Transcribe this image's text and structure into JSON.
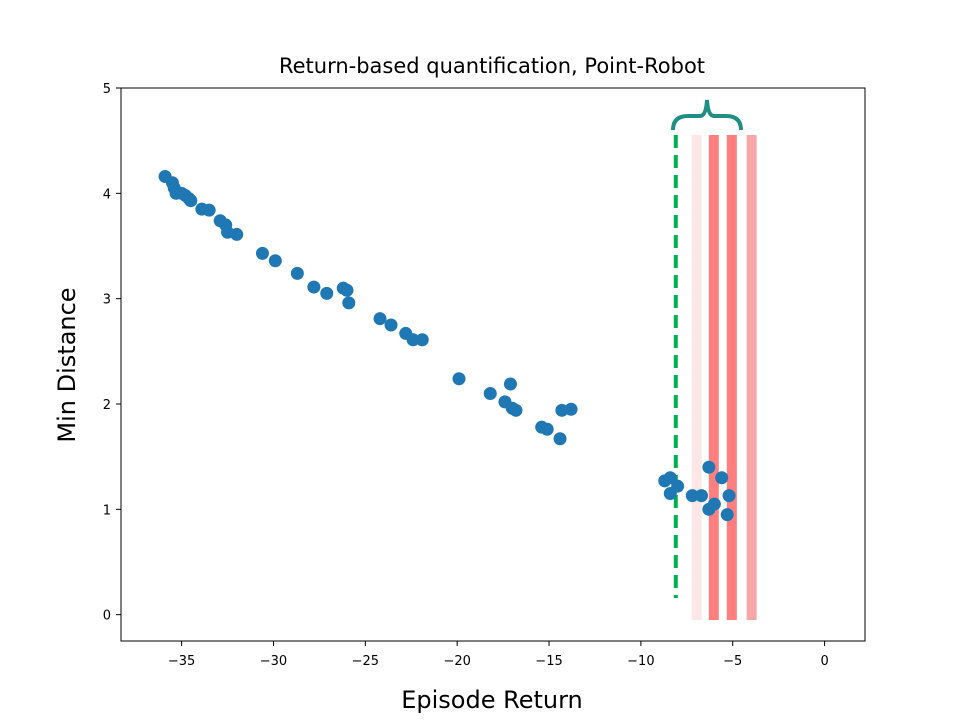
{
  "chart_data": {
    "type": "scatter",
    "title": "Return-based quantification, Point-Robot",
    "x_label": "Episode Return",
    "y_label": "Min Distance",
    "color": "#1f77b4",
    "xlim": [
      -38.3,
      2.2
    ],
    "ylim": [
      -0.25,
      5
    ],
    "xticks": [
      {
        "value": -35,
        "label": "−35"
      },
      {
        "value": -30,
        "label": "−30"
      },
      {
        "value": -25,
        "label": "−25"
      },
      {
        "value": -20,
        "label": "−20"
      },
      {
        "value": -15,
        "label": "−15"
      },
      {
        "value": -10,
        "label": "−10"
      },
      {
        "value": -5,
        "label": "−5"
      },
      0
    ],
    "yticks": [
      0,
      1,
      2,
      3,
      4,
      5
    ],
    "x": [
      -35.9,
      -35.5,
      -35.4,
      -35.3,
      -35.0,
      -34.8,
      -34.6,
      -34.5,
      -33.9,
      -33.5,
      -32.9,
      -32.6,
      -32.5,
      -32.0,
      -30.6,
      -29.9,
      -28.7,
      -27.8,
      -27.1,
      -26.2,
      -26.0,
      -25.9,
      -24.2,
      -23.6,
      -22.8,
      -22.4,
      -21.9,
      -19.9,
      -18.2,
      -17.4,
      -17.1,
      -17.0,
      -16.8,
      -15.4,
      -15.1,
      -14.4,
      -14.3,
      -13.8,
      -8.7,
      -8.4,
      -8.4,
      -8.0,
      -7.2,
      -6.7,
      -6.3,
      -6.3,
      -6.0,
      -5.6,
      -5.3,
      -5.2
    ],
    "values": [
      4.16,
      4.1,
      4.05,
      4.0,
      4.0,
      3.98,
      3.95,
      3.93,
      3.85,
      3.84,
      3.74,
      3.7,
      3.63,
      3.61,
      3.43,
      3.36,
      3.24,
      3.11,
      3.05,
      3.1,
      3.08,
      2.96,
      2.81,
      2.75,
      2.67,
      2.61,
      2.61,
      2.24,
      2.1,
      2.02,
      2.19,
      1.96,
      1.94,
      1.78,
      1.76,
      1.67,
      1.94,
      1.95,
      1.27,
      1.3,
      1.15,
      1.22,
      1.13,
      1.13,
      1.4,
      1.0,
      1.05,
      1.3,
      0.95,
      1.13
    ],
    "vertical_lines": [
      {
        "x": -8.1,
        "color": "#00b050",
        "dashed": true
      },
      {
        "x": -6.96,
        "color": "#fde6e6",
        "dashed": false
      },
      {
        "x": -6.03,
        "color": "#ff7f7f",
        "dashed": false
      },
      {
        "x": -5.05,
        "color": "#ff7f7f",
        "dashed": false
      },
      {
        "x": -3.97,
        "color": "#f7a7a7",
        "dashed": false
      }
    ]
  }
}
